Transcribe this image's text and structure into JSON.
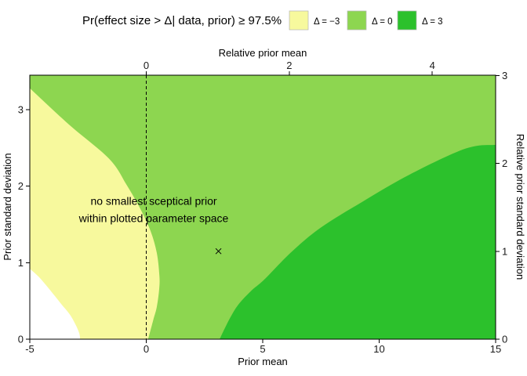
{
  "figure": {
    "title": "Pr(effect size > Δ| data, prior) ≥ 97.5%",
    "legend": {
      "items": [
        {
          "label": "Δ = −3",
          "color": "#F7F99D"
        },
        {
          "label": "Δ = 0",
          "color": "#8DD650"
        },
        {
          "label": "Δ = 3",
          "color": "#2CC12C"
        }
      ]
    }
  },
  "chart_data": {
    "type": "area",
    "subtype": "filled-contour-regions",
    "title": "Pr(effect size > Δ| data, prior) ≥ 97.5%",
    "legend_position": "top-right",
    "grid": false,
    "axes": {
      "bottom": {
        "label": "Prior mean",
        "ticks": [
          -5,
          0,
          5,
          10,
          15
        ],
        "range": [
          -5,
          15
        ]
      },
      "top": {
        "label": "Relative prior mean",
        "ticks": [
          0,
          2,
          4
        ],
        "prior_mean_per_unit": 3.07
      },
      "left": {
        "label": "Prior standard deviation",
        "ticks": [
          0,
          1,
          2,
          3
        ],
        "range": [
          0,
          3.45
        ]
      },
      "right": {
        "label": "Relative prior standard deviation",
        "ticks": [
          0,
          1,
          2,
          3
        ],
        "prior_sd_per_unit": 1.148
      }
    },
    "regions": [
      {
        "name": "delta-0-band",
        "legend": "Δ = 0",
        "color": "#8DD650",
        "shape": "full-plot-background"
      },
      {
        "name": "delta-minus3-band",
        "legend": "Δ = −3",
        "color": "#F7F99D",
        "boundary": [
          [
            -5,
            3.28
          ],
          [
            -3.3,
            2.8
          ],
          [
            -1.6,
            2.36
          ],
          [
            -0.85,
            2.02
          ],
          [
            -0.25,
            1.7
          ],
          [
            0.19,
            1.41
          ],
          [
            0.45,
            1.13
          ],
          [
            0.56,
            0.85
          ],
          [
            0.56,
            0.67
          ],
          [
            0.45,
            0.42
          ],
          [
            0.3,
            0.25
          ],
          [
            0.08,
            0
          ]
        ],
        "close_corners": [
          [
            -5,
            0
          ]
        ]
      },
      {
        "name": "no-band-region",
        "legend": null,
        "color": "#FFFFFF",
        "boundary": [
          [
            -5,
            0.92
          ],
          [
            -4.6,
            0.81
          ],
          [
            -4.15,
            0.65
          ],
          [
            -3.65,
            0.46
          ],
          [
            -3.3,
            0.33
          ],
          [
            -3.05,
            0.2
          ],
          [
            -2.88,
            0.08
          ],
          [
            -2.84,
            0
          ]
        ],
        "close_corners": [
          [
            -5,
            0
          ]
        ]
      },
      {
        "name": "delta-3-band",
        "legend": "Δ = 3",
        "color": "#2CC12C",
        "boundary": [
          [
            3.15,
            0
          ],
          [
            3.55,
            0.25
          ],
          [
            3.95,
            0.45
          ],
          [
            4.5,
            0.63
          ],
          [
            5.07,
            0.78
          ],
          [
            6.2,
            1.13
          ],
          [
            7.5,
            1.46
          ],
          [
            9.3,
            1.8
          ],
          [
            11.3,
            2.15
          ],
          [
            13.7,
            2.49
          ],
          [
            15,
            2.54
          ]
        ],
        "close_corners": [
          [
            15,
            0
          ]
        ]
      }
    ],
    "reference_line": {
      "prior_mean": 0,
      "style": "dashed",
      "color": "#000000"
    },
    "marker": {
      "prior_mean": 3.1,
      "prior_sd": 1.15,
      "symbol": "x"
    },
    "annotation": {
      "lines": [
        "no smallest sceptical prior",
        "within plotted parameter space"
      ],
      "prior_mean": 0.32,
      "prior_sd": 1.8
    }
  }
}
